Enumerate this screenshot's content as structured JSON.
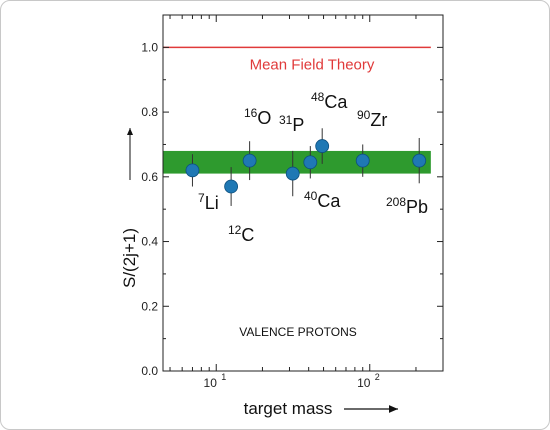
{
  "chart_data": {
    "type": "scatter",
    "xlabel": "target mass",
    "ylabel": "S/(2j+1)",
    "x_scale": "log",
    "xlim": [
      4.5,
      300
    ],
    "ylim": [
      0,
      1.1
    ],
    "y_ticks": [
      "0.0",
      "0.2",
      "0.4",
      "0.6",
      "0.8",
      "1.0"
    ],
    "x_ticks": [
      {
        "value": 10,
        "base": "10",
        "exp": "1"
      },
      {
        "value": 100,
        "base": "10",
        "exp": "2"
      }
    ],
    "reference_line": {
      "label": "Mean Field Theory",
      "y": 1.0,
      "x_range": [
        4.5,
        250
      ],
      "color": "#e03a3a"
    },
    "band": {
      "y_range": [
        0.61,
        0.68
      ],
      "x_range": [
        4.5,
        250
      ],
      "color": "#2e9a2e"
    },
    "annotation": "VALENCE PROTONS",
    "points": [
      {
        "mass_number": "7",
        "symbol": "Li",
        "x": 7,
        "y": 0.62,
        "err": 0.05
      },
      {
        "mass_number": "12",
        "symbol": "C",
        "x": 12.5,
        "y": 0.57,
        "err": 0.06
      },
      {
        "mass_number": "16",
        "symbol": "O",
        "x": 16.5,
        "y": 0.65,
        "err": 0.06
      },
      {
        "mass_number": "31",
        "symbol": "P",
        "x": 31.5,
        "y": 0.61,
        "err": 0.07
      },
      {
        "mass_number": "40",
        "symbol": "Ca",
        "x": 41,
        "y": 0.645,
        "err": 0.05
      },
      {
        "mass_number": "48",
        "symbol": "Ca",
        "x": 49,
        "y": 0.695,
        "err": 0.055
      },
      {
        "mass_number": "90",
        "symbol": "Zr",
        "x": 90,
        "y": 0.65,
        "err": 0.05
      },
      {
        "mass_number": "208",
        "symbol": "Pb",
        "x": 210,
        "y": 0.65,
        "err": 0.07
      }
    ],
    "colors": {
      "point": "#1f78b4",
      "point_edge": "#0d4f7e",
      "axis": "#222222"
    }
  }
}
